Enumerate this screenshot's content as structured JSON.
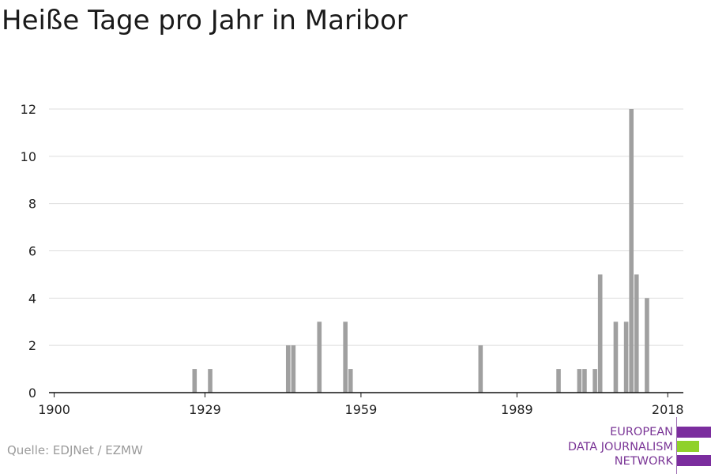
{
  "title": "Heiße Tage pro Jahr in Maribor",
  "source": "Quelle: EDJNet / EZMW",
  "logo": {
    "lines": [
      "EUROPEAN",
      "DATA JOURNALISM",
      "NETWORK"
    ],
    "colors": {
      "purple": "#7b2d9e",
      "green": "#8fd12a"
    }
  },
  "chart_data": {
    "type": "bar",
    "title": "Heiße Tage pro Jahr in Maribor",
    "xlabel": "",
    "ylabel": "",
    "xlim": [
      1899,
      2021
    ],
    "ylim": [
      0,
      12
    ],
    "grid": true,
    "bar_color": "#a0a0a0",
    "x_ticks": [
      1900,
      1929,
      1959,
      1989,
      2018
    ],
    "y_ticks": [
      0,
      2,
      4,
      6,
      8,
      10,
      12
    ],
    "x": [
      1927,
      1930,
      1945,
      1946,
      1951,
      1956,
      1957,
      1982,
      1997,
      2001,
      2002,
      2004,
      2005,
      2008,
      2010,
      2011,
      2012,
      2014,
      2016
    ],
    "values": [
      1,
      1,
      2,
      2,
      3,
      3,
      1,
      2,
      1,
      1,
      1,
      1,
      5,
      3,
      3,
      12,
      5,
      4,
      0
    ]
  }
}
